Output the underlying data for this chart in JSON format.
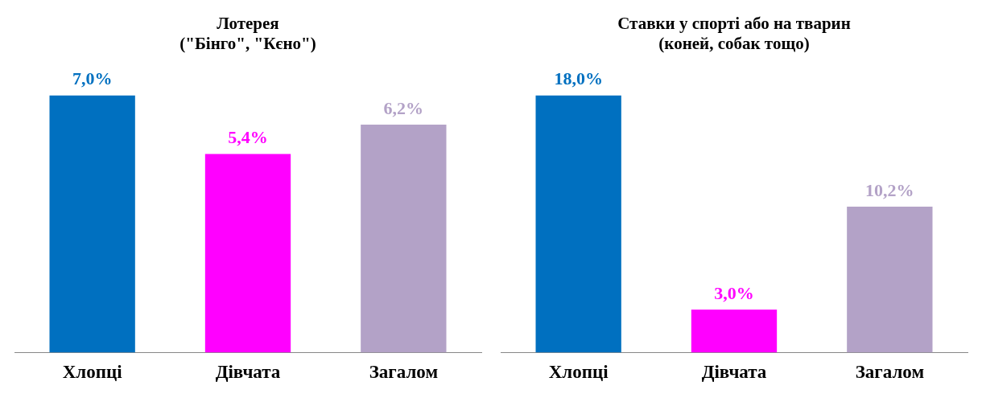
{
  "chart_data": [
    {
      "type": "bar",
      "title": [
        "Лотерея",
        "(\"Бінго\", \"Кєно\")"
      ],
      "categories": [
        "Хлопці",
        "Дівчата",
        "Загалом"
      ],
      "values": [
        7.0,
        5.4,
        6.2
      ],
      "colors": [
        "#0070c0",
        "#ff00ff",
        "#b3a2c7"
      ],
      "value_labels": [
        "7,0%",
        "5,4%",
        "6,2%"
      ],
      "tick_labels": "x",
      "legend": false,
      "grid": false
    },
    {
      "type": "bar",
      "title": [
        "Ставки у спорті або на тварин",
        "(коней, собак тощо)"
      ],
      "categories": [
        "Хлопці",
        "Дівчата",
        "Загалом"
      ],
      "values": [
        18.0,
        3.0,
        10.2
      ],
      "colors": [
        "#0070c0",
        "#ff00ff",
        "#b3a2c7"
      ],
      "value_labels": [
        "18,0%",
        "3,0%",
        "10,2%"
      ],
      "tick_labels": "x",
      "legend": false,
      "grid": false
    }
  ]
}
